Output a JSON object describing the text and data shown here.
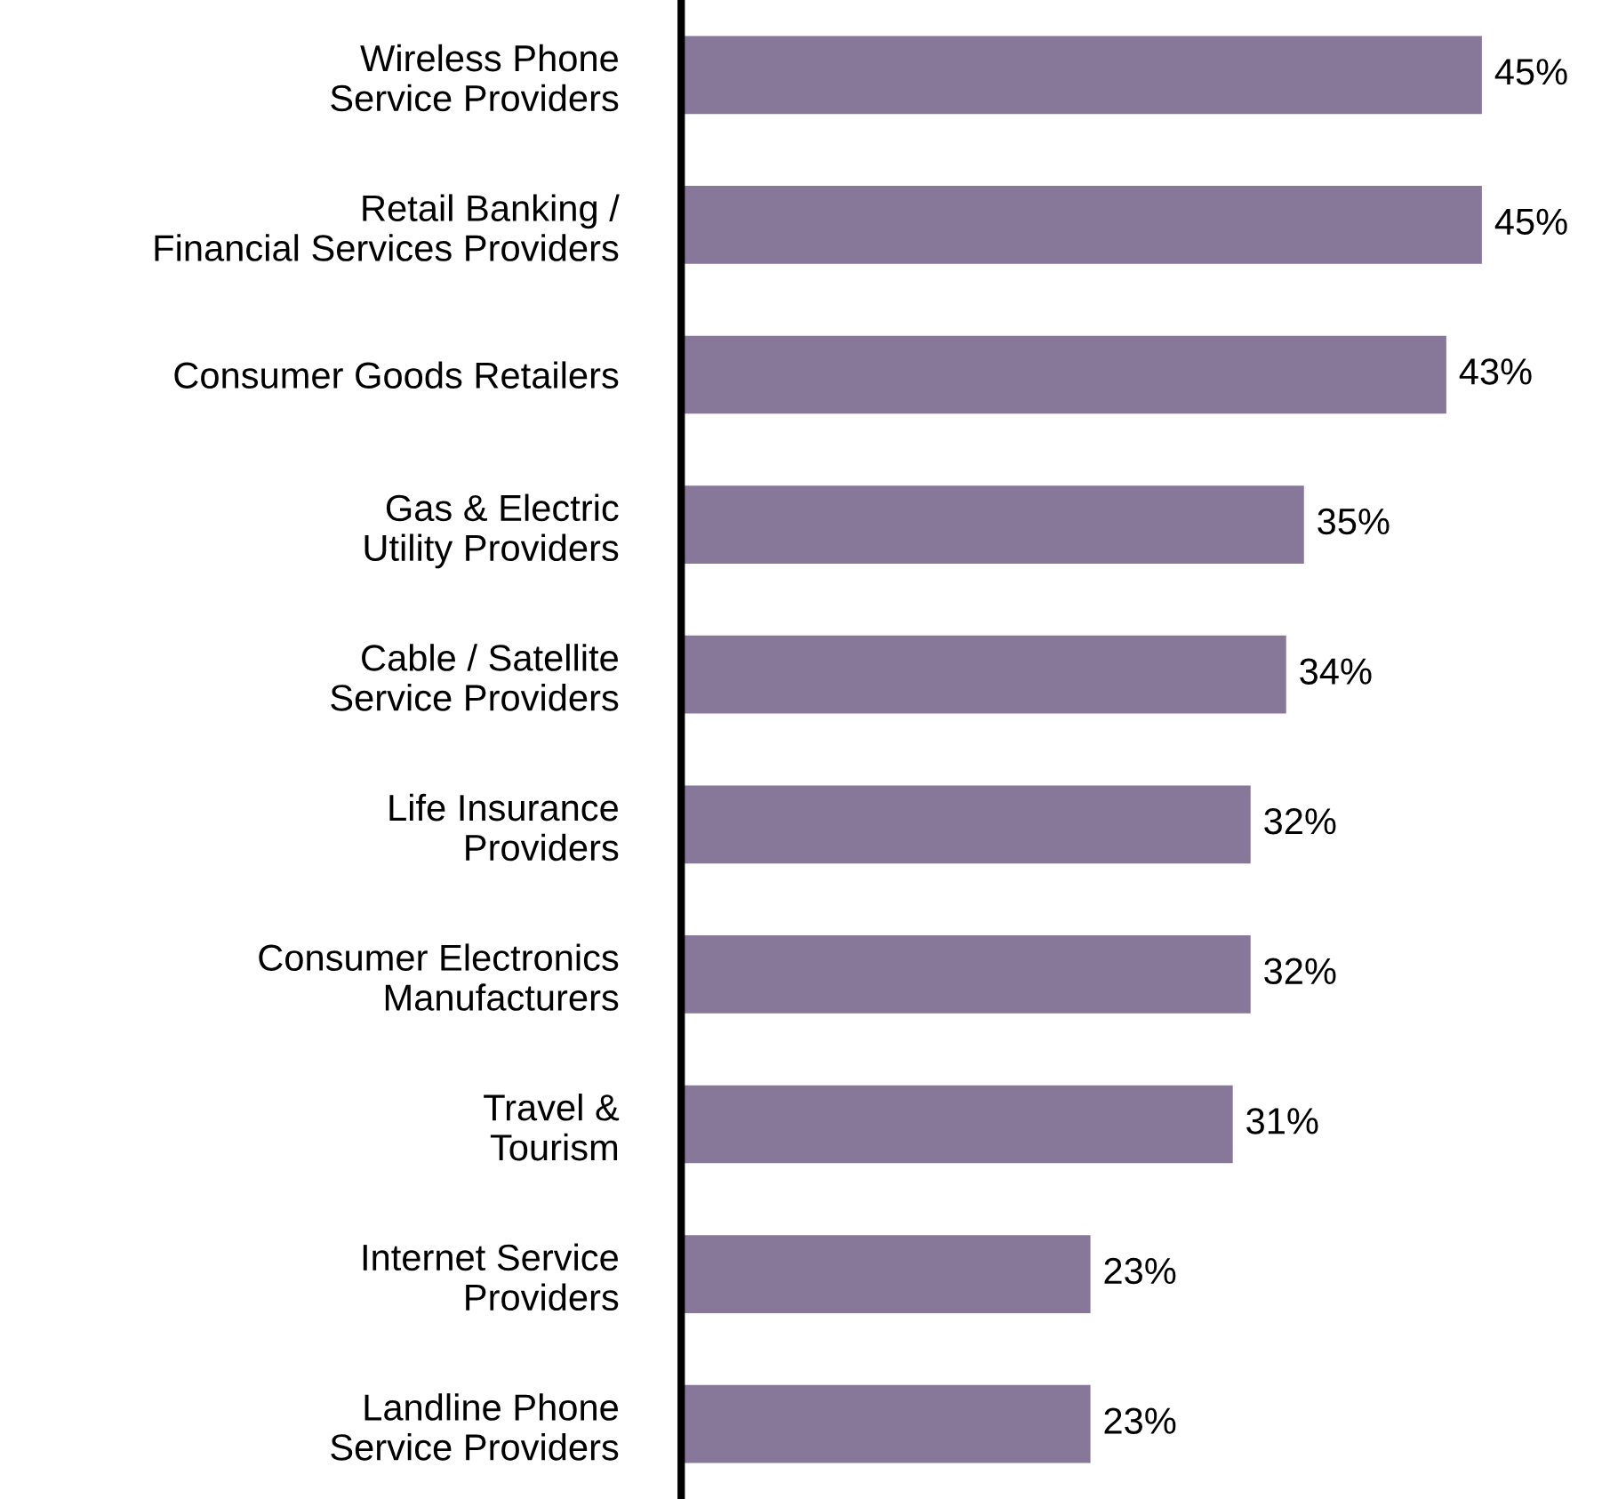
{
  "chart_data": {
    "type": "bar",
    "orientation": "horizontal",
    "categories": [
      "Wireless Phone\nService Providers",
      "Retail Banking /\nFinancial Services Providers",
      "Consumer Goods Retailers",
      "Gas & Electric\nUtility Providers",
      "Cable / Satellite\nService Providers",
      "Life Insurance\nProviders",
      "Consumer Electronics\nManufacturers",
      "Travel &\nTourism",
      "Internet Service\nProviders",
      "Landline Phone\nService Providers"
    ],
    "values": [
      45,
      45,
      43,
      35,
      34,
      32,
      32,
      31,
      23,
      23
    ],
    "value_labels": [
      "45%",
      "45%",
      "43%",
      "35%",
      "34%",
      "32%",
      "32%",
      "31%",
      "23%",
      "23%"
    ],
    "color": "#877799",
    "grid": false,
    "legend": false
  }
}
